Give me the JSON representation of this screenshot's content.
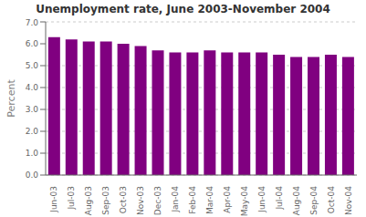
{
  "chart_data": {
    "type": "bar",
    "title": "Unemployment rate, June 2003-November 2004",
    "ylabel": "Percent",
    "categories": [
      "Jun-03",
      "Jul-03",
      "Aug-03",
      "Sep-03",
      "Oct-03",
      "Nov-03",
      "Dec-03",
      "Jan-04",
      "Feb-04",
      "Mar-04",
      "Apr-04",
      "May-04",
      "Jun-04",
      "Jul-04",
      "Aug-04",
      "Sep-04",
      "Oct-04",
      "Nov-04"
    ],
    "values": [
      6.3,
      6.2,
      6.1,
      6.1,
      6.0,
      5.9,
      5.7,
      5.6,
      5.6,
      5.7,
      5.6,
      5.6,
      5.6,
      5.5,
      5.4,
      5.4,
      5.5,
      5.4
    ],
    "color": "#800080",
    "ylim": [
      0.0,
      7.0
    ],
    "yticks": [
      {
        "value": 0,
        "label": "0.0"
      },
      {
        "value": 1,
        "label": "1.0"
      },
      {
        "value": 2,
        "label": "2.0"
      },
      {
        "value": 3,
        "label": "3.0"
      },
      {
        "value": 4,
        "label": "4.0"
      },
      {
        "value": 5,
        "label": "5.0"
      },
      {
        "value": 6,
        "label": "6.0"
      },
      {
        "value": 7,
        "label": "7.0"
      }
    ],
    "grid": true
  }
}
